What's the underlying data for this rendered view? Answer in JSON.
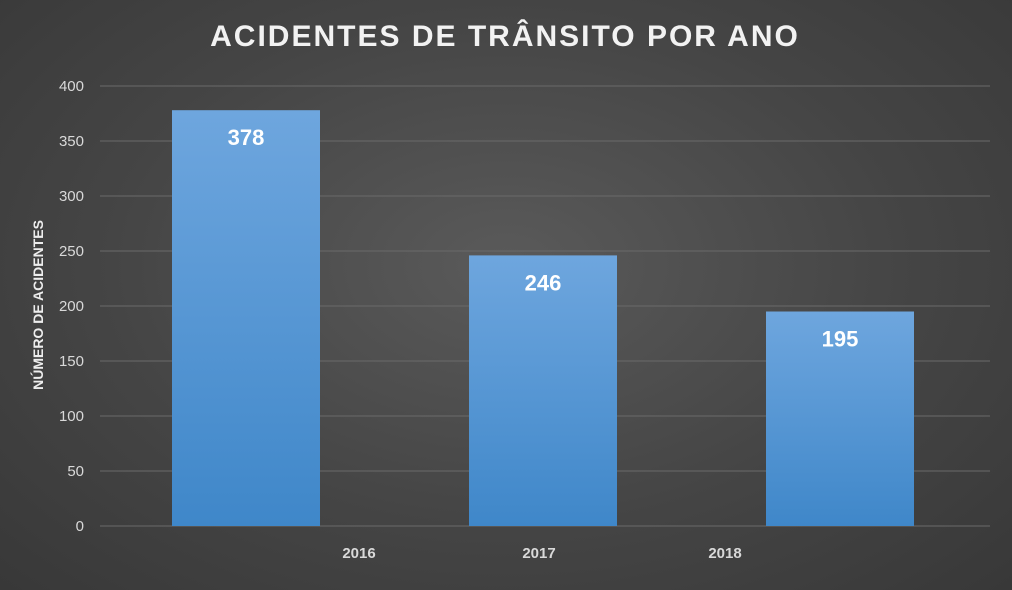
{
  "chart_data": {
    "type": "bar",
    "title": "ACIDENTES DE TRÂNSITO POR ANO",
    "xlabel": "",
    "ylabel": "NÚMERO DE ACIDENTES",
    "categories": [
      "2016",
      "2017",
      "2018"
    ],
    "values": [
      378,
      246,
      195
    ],
    "ylim": [
      0,
      400
    ],
    "yticks": [
      "0",
      "50",
      "100",
      "150",
      "200",
      "250",
      "300",
      "350",
      "400"
    ],
    "grid": true,
    "legend": "none",
    "colors": {
      "bar_top": "#6ea6de",
      "bar_bottom": "#3f87c9",
      "background": "#454545"
    }
  }
}
